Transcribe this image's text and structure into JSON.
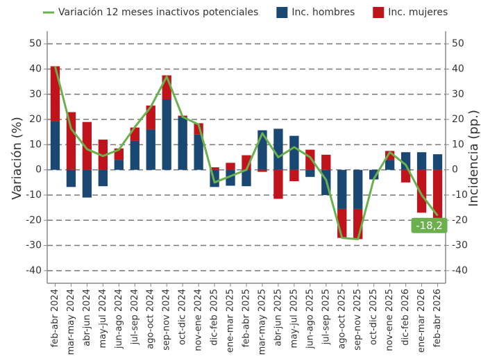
{
  "chart_data": {
    "type": "combo",
    "categories": [
      "feb-abr 2024",
      "mar-may 2024",
      "abr-jun 2024",
      "may-jul 2024",
      "jun-ago 2024",
      "jul-sep 2024",
      "ago-oct 2024",
      "sep-nov 2024",
      "oct-dic 2024",
      "nov-ene 2024",
      "dic-feb 2025",
      "ene-mar 2025",
      "feb-abr 2025",
      "mar-may 2025",
      "abr-jun 2025",
      "may-jul 2025",
      "jun-ago 2025",
      "jul-sep 2025",
      "ago-oct 2025",
      "sep-nov 2025",
      "oct-dic 2025",
      "nov-ene 2025",
      "dic-feb 2026",
      "ene-mar 2026",
      "feb-abr 2026"
    ],
    "series": [
      {
        "name": "Variación 12 meses inactivos potenciales",
        "type": "line",
        "color": "#6ab04c",
        "values": [
          41,
          16.3,
          8.2,
          5.5,
          8,
          17,
          25,
          37,
          21,
          18,
          -5,
          -2.5,
          0,
          14.5,
          5,
          9,
          5,
          -4,
          -27,
          -27.5,
          -3.5,
          7,
          2,
          -10,
          -18.2
        ],
        "value_labels": [
          null,
          null,
          null,
          null,
          null,
          null,
          null,
          null,
          null,
          null,
          null,
          null,
          null,
          null,
          null,
          null,
          null,
          null,
          null,
          null,
          null,
          null,
          null,
          null,
          "-18,2"
        ]
      },
      {
        "name": "Inc. hombres",
        "type": "bar",
        "axis": "y2",
        "color": "#1b4873",
        "values": [
          19.3,
          -6.8,
          -11,
          -6.5,
          4,
          11.5,
          16,
          28,
          21,
          14,
          -6.8,
          -6.3,
          -6.5,
          15.7,
          16.3,
          13.5,
          -2.8,
          -10,
          -15.5,
          -15.5,
          -3.8,
          4,
          7,
          7,
          6.2
        ]
      },
      {
        "name": "Inc. mujeres",
        "type": "bar",
        "axis": "y2",
        "color": "#c0141c",
        "values": [
          21.8,
          22.9,
          19,
          12,
          4.5,
          5.3,
          9.5,
          9.5,
          0.5,
          4.5,
          1,
          2.8,
          5.8,
          -0.8,
          -11.5,
          -4.5,
          8,
          6,
          -11.5,
          -12,
          0,
          3.5,
          -5,
          -17,
          -24.5
        ]
      }
    ],
    "y_label": "Variación (%)",
    "y2_label": "Incidencia (pp.)",
    "ylim": [
      -45,
      55
    ],
    "yticks": [
      -40,
      -30,
      -20,
      -10,
      0,
      10,
      20,
      30,
      40,
      50
    ],
    "y2lim": [
      -45,
      55
    ],
    "y2ticks": [
      -40,
      -30,
      -20,
      -10,
      0,
      10,
      20,
      30,
      40,
      50
    ],
    "grid": true,
    "legend": "top"
  }
}
